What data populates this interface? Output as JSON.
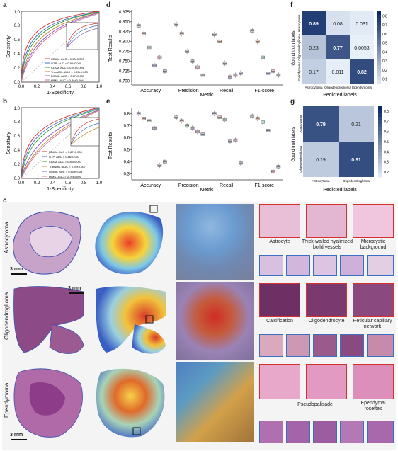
{
  "panel_labels": {
    "a": "a",
    "b": "b",
    "c": "c",
    "d": "d",
    "e": "e",
    "f": "f",
    "g": "g"
  },
  "roc_a": {
    "xlabel": "1-Specificity",
    "ylabel": "Sensitivity",
    "ticks": [
      "0.0",
      "0.2",
      "0.4",
      "0.6",
      "0.8",
      "1.0"
    ],
    "legend": [
      "RDAM: AUC = 0.93±0.003",
      "GTP: AUC = 0.92±0.005",
      "CLAM: AUC = 0.91±0.004",
      "TransMIL: AUC = 0.89±0.003",
      "DSMIL: AUC = 0.87±0.005",
      "HIMIL: AUC = 0.88±0.004"
    ]
  },
  "roc_b": {
    "xlabel": "1-Specificity",
    "ylabel": "Sensitivity",
    "ticks": [
      "0.0",
      "0.2",
      "0.4",
      "0.6",
      "0.8",
      "1.0"
    ],
    "legend": [
      "RDAM: AUC = 0.87±0.003",
      "GTP: AUC = 0.86±0.003",
      "CLAM: AUC = 0.85±0.003",
      "TransMIL: AUC = 0.76±0.007",
      "DSMIL: AUC = 0.80±0.005",
      "HIMIL: AUC = 0.76±0.005"
    ]
  },
  "chart_data": [
    {
      "type": "box",
      "title": "",
      "xlabel": "Metric",
      "ylabel": "Test Results",
      "categories": [
        "Accuracy",
        "Precision",
        "Recall",
        "F1-score"
      ],
      "ylim": [
        0.69,
        0.88
      ],
      "yticks": [
        "0.875",
        "0.850",
        "0.825",
        "0.800",
        "0.775",
        "0.750",
        "0.725",
        "0.700"
      ],
      "medians": [
        [
          0.84,
          0.82,
          0.785,
          0.74,
          0.76,
          0.725
        ],
        [
          0.843,
          0.82,
          0.775,
          0.75,
          0.735,
          0.715
        ],
        [
          0.818,
          0.8,
          0.745,
          0.71,
          0.715,
          0.72
        ],
        [
          0.827,
          0.8,
          0.76,
          0.72,
          0.725,
          0.715
        ]
      ]
    },
    {
      "type": "box",
      "title": "",
      "xlabel": "Metric",
      "ylabel": "Test Results",
      "categories": [
        "Accuracy",
        "Precision",
        "Recall",
        "F1-score"
      ],
      "ylim": [
        0.25,
        0.85
      ],
      "yticks": [
        "0.8",
        "0.7",
        "0.6",
        "0.5",
        "0.4",
        "0.3"
      ],
      "medians": [
        [
          0.8,
          0.76,
          0.74,
          0.68,
          0.37,
          0.4
        ],
        [
          0.77,
          0.74,
          0.7,
          0.68,
          0.65,
          0.63
        ],
        [
          0.8,
          0.77,
          0.75,
          0.57,
          0.58,
          0.39
        ],
        [
          0.78,
          0.76,
          0.73,
          0.66,
          0.32,
          0.36
        ]
      ]
    },
    {
      "type": "heatmap",
      "title": "",
      "xlabel": "Pedicted labels",
      "ylabel": "Gound truth labels",
      "x": [
        "Astrocytoma",
        "Oligodendroglioma",
        "Ependymoma"
      ],
      "y": [
        "Astrocytoma",
        "Oligodendroglioma",
        "Ependymoma"
      ],
      "values": [
        [
          0.89,
          0.08,
          0.031
        ],
        [
          0.23,
          0.77,
          0.0053
        ],
        [
          0.17,
          0.011,
          0.82
        ]
      ],
      "colorbar": [
        "0.8",
        "0.7",
        "0.6",
        "0.5",
        "0.4",
        "0.3",
        "0.2",
        "0.1"
      ]
    },
    {
      "type": "heatmap",
      "title": "",
      "xlabel": "Pedicted labels",
      "ylabel": "Gound truth labels",
      "x": [
        "Astrocytoma",
        "Oligodendroglioma"
      ],
      "y": [
        "Astrocytoma",
        "Oligodendroglioma"
      ],
      "values": [
        [
          0.79,
          0.21
        ],
        [
          0.19,
          0.81
        ]
      ],
      "colorbar": [
        "0.8",
        "0.7",
        "0.6",
        "0.5",
        "0.4",
        "0.3",
        "0.2"
      ]
    }
  ],
  "c": {
    "rows": [
      "Astrocytoma",
      "Oligodendroglioma",
      "Ependymoma"
    ],
    "scale": "3 mm",
    "captions": {
      "astrocyte": "Astrocyte",
      "vessels": "Thick-walled hyalinized\nbolld vessels",
      "microcystic": "Microcystic\nbackground",
      "calcification": "Calcification",
      "oligodendrocyte": "Oligodendrocyte",
      "reticular": "Reticular capillary\nnetwork",
      "pseudopalisade": "Pseudopalisade",
      "ependymal": "Ependymal\nrosettes"
    }
  },
  "colors": {
    "red": "#d43030",
    "blue": "#3a6fc4",
    "box_c1": "#a9a9a9",
    "box_c2": "#e0a98a"
  }
}
